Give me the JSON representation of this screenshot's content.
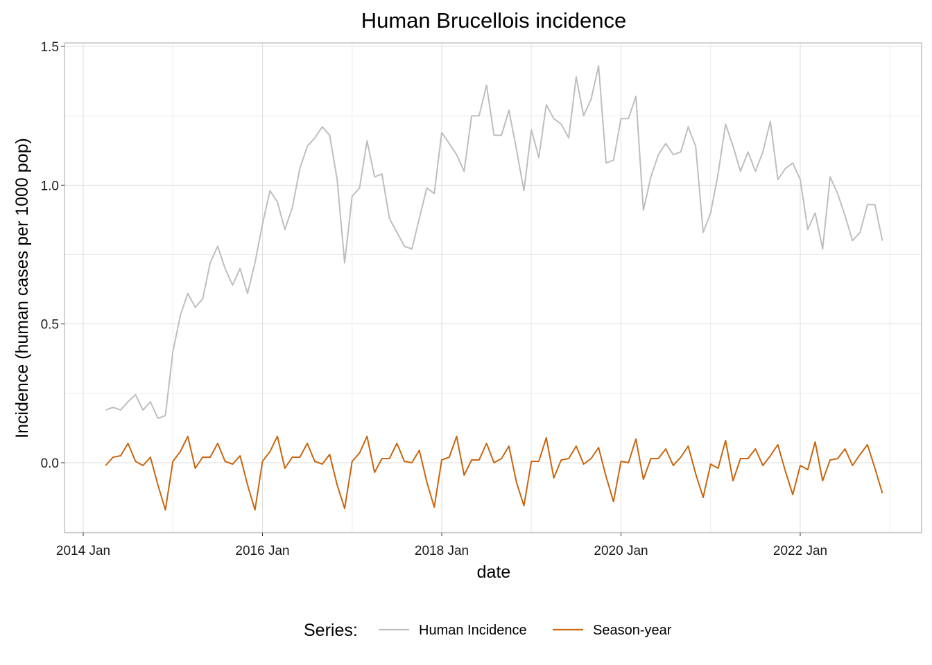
{
  "chart_data": {
    "type": "line",
    "title": "Human Brucellois incidence",
    "xlabel": "date",
    "ylabel": "Incidence (human cases per 1000 pop)",
    "x_ticks": [
      "2014 Jan",
      "2016 Jan",
      "2018 Jan",
      "2020 Jan",
      "2022 Jan"
    ],
    "y_ticks": [
      "0.0",
      "0.5",
      "1.0",
      "1.5"
    ],
    "xlim": [
      "2014-01",
      "2023-03"
    ],
    "ylim": [
      -0.25,
      1.52
    ],
    "grid": true,
    "legend": {
      "position": "bottom",
      "title": "Series:"
    },
    "x_dates": [
      "2014-04",
      "2014-05",
      "2014-06",
      "2014-07",
      "2014-08",
      "2014-09",
      "2014-10",
      "2014-11",
      "2014-12",
      "2015-01",
      "2015-02",
      "2015-03",
      "2015-04",
      "2015-05",
      "2015-06",
      "2015-07",
      "2015-08",
      "2015-09",
      "2015-10",
      "2015-11",
      "2015-12",
      "2016-01",
      "2016-02",
      "2016-03",
      "2016-04",
      "2016-05",
      "2016-06",
      "2016-07",
      "2016-08",
      "2016-09",
      "2016-10",
      "2016-11",
      "2016-12",
      "2017-01",
      "2017-02",
      "2017-03",
      "2017-04",
      "2017-05",
      "2017-06",
      "2017-07",
      "2017-08",
      "2017-09",
      "2017-10",
      "2017-11",
      "2017-12",
      "2018-01",
      "2018-02",
      "2018-03",
      "2018-04",
      "2018-05",
      "2018-06",
      "2018-07",
      "2018-08",
      "2018-09",
      "2018-10",
      "2018-11",
      "2018-12",
      "2019-01",
      "2019-02",
      "2019-03",
      "2019-04",
      "2019-05",
      "2019-06",
      "2019-07",
      "2019-08",
      "2019-09",
      "2019-10",
      "2019-11",
      "2019-12",
      "2020-01",
      "2020-02",
      "2020-03",
      "2020-04",
      "2020-05",
      "2020-06",
      "2020-07",
      "2020-08",
      "2020-09",
      "2020-10",
      "2020-11",
      "2020-12",
      "2021-01",
      "2021-02",
      "2021-03",
      "2021-04",
      "2021-05",
      "2021-06",
      "2021-07",
      "2021-08",
      "2021-09",
      "2021-10",
      "2021-11",
      "2021-12",
      "2022-01",
      "2022-02",
      "2022-03",
      "2022-04",
      "2022-05",
      "2022-06",
      "2022-07",
      "2022-08",
      "2022-09",
      "2022-10",
      "2022-11",
      "2022-12"
    ],
    "series": [
      {
        "name": "Human Incidence",
        "color": "#bebebe",
        "values": [
          0.19,
          0.2,
          0.19,
          0.22,
          0.245,
          0.19,
          0.22,
          0.16,
          0.17,
          0.4,
          0.53,
          0.61,
          0.56,
          0.59,
          0.72,
          0.78,
          0.7,
          0.64,
          0.7,
          0.61,
          0.72,
          0.86,
          0.98,
          0.94,
          0.84,
          0.92,
          1.06,
          1.14,
          1.17,
          1.21,
          1.18,
          1.02,
          0.72,
          0.96,
          0.99,
          1.16,
          1.03,
          1.04,
          0.88,
          0.83,
          0.78,
          0.77,
          0.88,
          0.99,
          0.97,
          1.19,
          1.15,
          1.11,
          1.05,
          1.25,
          1.25,
          1.36,
          1.18,
          1.18,
          1.27,
          1.13,
          0.98,
          1.2,
          1.1,
          1.29,
          1.24,
          1.22,
          1.17,
          1.39,
          1.25,
          1.31,
          1.43,
          1.08,
          1.09,
          1.24,
          1.24,
          1.32,
          0.91,
          1.03,
          1.11,
          1.15,
          1.11,
          1.12,
          1.21,
          1.14,
          0.83,
          0.9,
          1.04,
          1.22,
          1.14,
          1.05,
          1.12,
          1.05,
          1.12,
          1.23,
          1.02,
          1.06,
          1.08,
          1.02,
          0.84,
          0.9,
          0.77,
          1.03,
          0.97,
          0.89,
          0.8,
          0.83,
          0.93,
          0.93,
          0.8
        ]
      },
      {
        "name": "Season-year",
        "color": "#c8650e",
        "values": [
          -0.01,
          0.02,
          0.025,
          0.07,
          0.005,
          -0.01,
          0.02,
          -0.08,
          -0.17,
          0.005,
          0.04,
          0.095,
          -0.02,
          0.02,
          0.02,
          0.07,
          0.005,
          -0.005,
          0.025,
          -0.08,
          -0.17,
          0.005,
          0.04,
          0.095,
          -0.02,
          0.02,
          0.02,
          0.07,
          0.005,
          -0.005,
          0.03,
          -0.08,
          -0.165,
          0.005,
          0.035,
          0.095,
          -0.035,
          0.015,
          0.015,
          0.07,
          0.005,
          0.0,
          0.045,
          -0.07,
          -0.16,
          0.01,
          0.02,
          0.095,
          -0.045,
          0.01,
          0.01,
          0.07,
          0.0,
          0.015,
          0.06,
          -0.07,
          -0.155,
          0.005,
          0.005,
          0.09,
          -0.055,
          0.01,
          0.015,
          0.06,
          -0.005,
          0.015,
          0.055,
          -0.05,
          -0.14,
          0.005,
          0.0,
          0.085,
          -0.06,
          0.015,
          0.015,
          0.05,
          -0.01,
          0.02,
          0.06,
          -0.04,
          -0.125,
          -0.005,
          -0.02,
          0.08,
          -0.065,
          0.015,
          0.015,
          0.05,
          -0.01,
          0.025,
          0.065,
          -0.03,
          -0.115,
          -0.01,
          -0.025,
          0.075,
          -0.065,
          0.01,
          0.015,
          0.05,
          -0.01,
          0.03,
          0.065,
          -0.02,
          -0.11
        ]
      }
    ]
  }
}
